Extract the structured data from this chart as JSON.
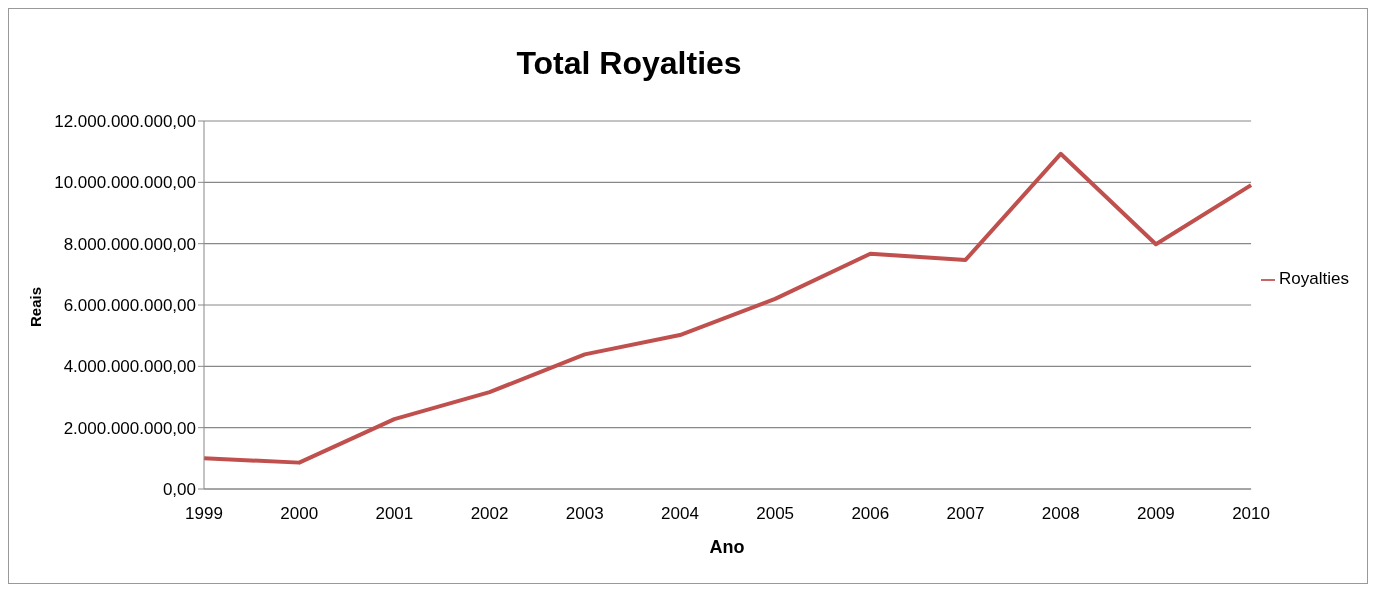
{
  "chart_data": {
    "type": "line",
    "title": "Total Royalties",
    "xlabel": "Ano",
    "ylabel": "Reais",
    "categories": [
      "1999",
      "2000",
      "2001",
      "2002",
      "2003",
      "2004",
      "2005",
      "2006",
      "2007",
      "2008",
      "2009",
      "2010"
    ],
    "series": [
      {
        "name": "Royalties",
        "color": "#c0504d",
        "values": [
          1000000000.0,
          860000000.0,
          2280000000.0,
          3160000000.0,
          4390000000.0,
          5020000000.0,
          6200000000.0,
          7670000000.0,
          7470000000.0,
          10930000000.0,
          7980000000.0,
          9910000000.0
        ]
      }
    ],
    "ylim": [
      0,
      12000000000
    ],
    "yticks": [
      {
        "value": 0,
        "label": "0,00"
      },
      {
        "value": 2000000000,
        "label": "2.000.000.000,00"
      },
      {
        "value": 4000000000,
        "label": "4.000.000.000,00"
      },
      {
        "value": 6000000000,
        "label": "6.000.000.000,00"
      },
      {
        "value": 8000000000,
        "label": "8.000.000.000,00"
      },
      {
        "value": 10000000000,
        "label": "10.000.000.000,00"
      },
      {
        "value": 12000000000,
        "label": "12.000.000.000,00"
      }
    ],
    "grid": "y",
    "legend": "right",
    "marker": "none",
    "line_style": "solid"
  }
}
